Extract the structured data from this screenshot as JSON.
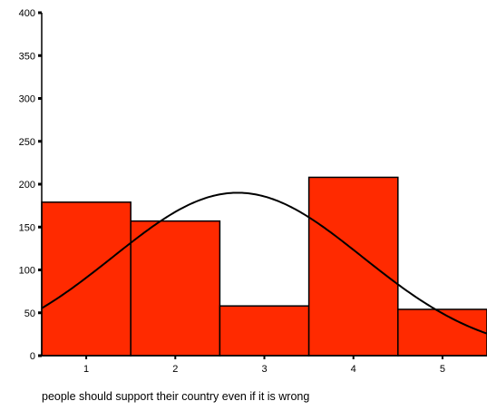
{
  "chart_data": {
    "type": "bar",
    "title": "",
    "xlabel": "people should support their country even if it is wrong",
    "ylabel": "",
    "categories": [
      "1",
      "2",
      "3",
      "4",
      "5"
    ],
    "values": [
      179,
      157,
      58,
      208,
      54
    ],
    "yticks": [
      "0",
      "50",
      "100",
      "150",
      "200",
      "250",
      "300",
      "350",
      "400"
    ],
    "ylim": [
      0,
      400
    ],
    "xlim": [
      0.5,
      5.5
    ],
    "normal_curve": {
      "mean": 2.7,
      "sd": 1.4,
      "peak": 190
    },
    "grid": false,
    "legend": "none",
    "colors": {
      "bar_fill": "#ff2a00",
      "bar_stroke": "#000000",
      "curve": "#000000",
      "axis": "#000000"
    }
  }
}
